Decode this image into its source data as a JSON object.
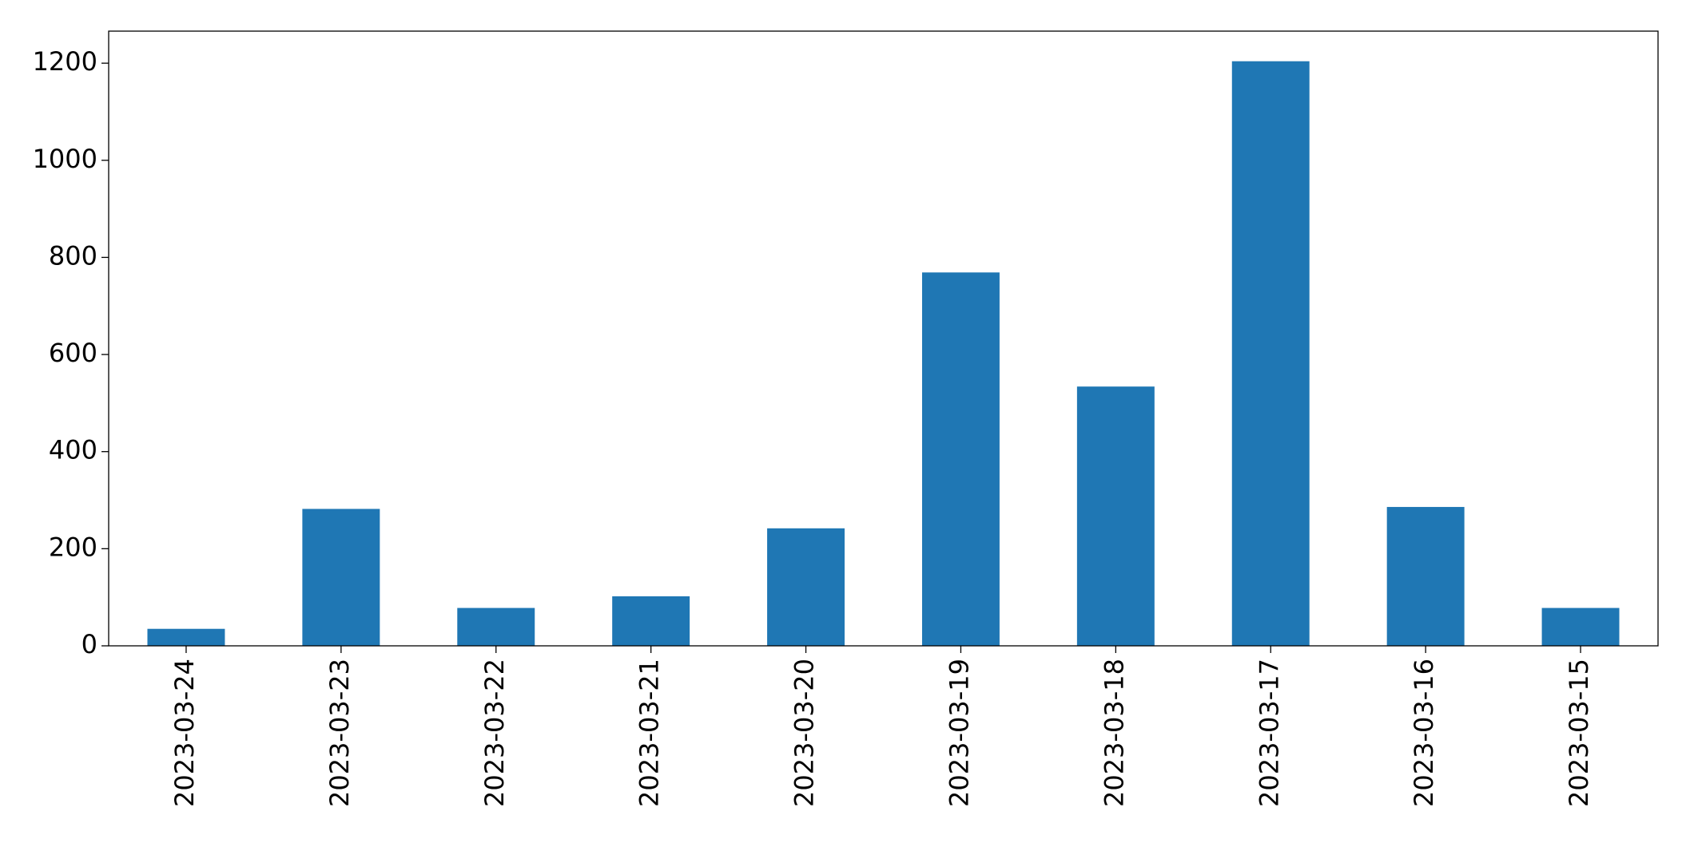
{
  "chart_data": {
    "type": "bar",
    "categories": [
      "2023-03-24",
      "2023-03-23",
      "2023-03-22",
      "2023-03-21",
      "2023-03-20",
      "2023-03-19",
      "2023-03-18",
      "2023-03-17",
      "2023-03-16",
      "2023-03-15"
    ],
    "values": [
      35,
      282,
      78,
      102,
      242,
      769,
      534,
      1204,
      286,
      78
    ],
    "color": "#1f77b4",
    "ylim": [
      0,
      1266
    ],
    "yticks": [
      0,
      200,
      400,
      600,
      800,
      1000,
      1200
    ],
    "grid": false
  }
}
